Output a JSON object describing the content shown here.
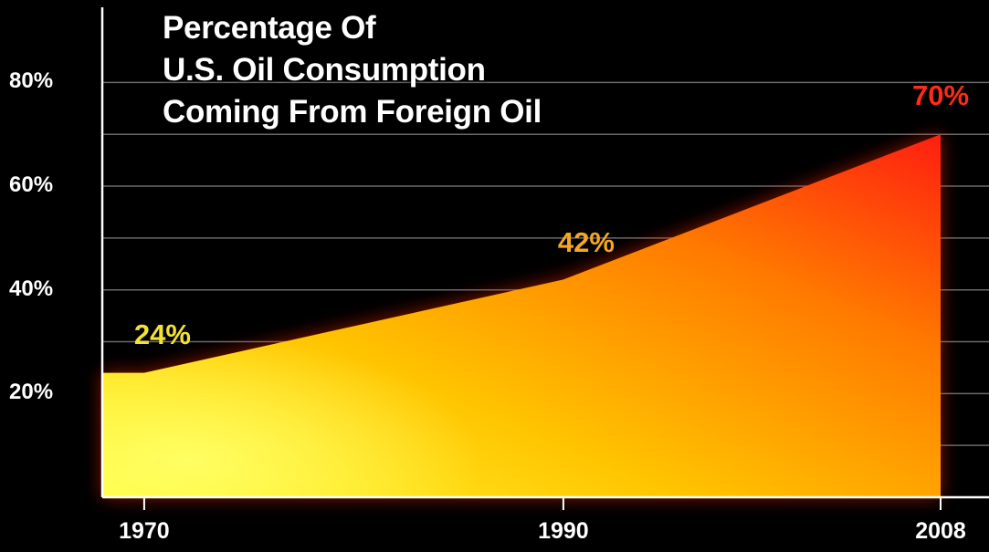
{
  "chart_data": {
    "type": "area",
    "title_lines": [
      "Percentage Of",
      "U.S. Oil Consumption",
      "Coming From Foreign Oil"
    ],
    "x": [
      1968,
      1970,
      1980,
      1990,
      2008
    ],
    "y": [
      24,
      24,
      33,
      42,
      70
    ],
    "xlim": [
      1968,
      2008
    ],
    "ylim": [
      0,
      85
    ],
    "x_ticks": [
      {
        "value": 1970,
        "label": "1970"
      },
      {
        "value": 1990,
        "label": "1990"
      },
      {
        "value": 2008,
        "label": "2008"
      }
    ],
    "y_ticks": [
      {
        "value": 20,
        "label": "20%"
      },
      {
        "value": 40,
        "label": "40%"
      },
      {
        "value": 60,
        "label": "60%"
      },
      {
        "value": 80,
        "label": "80%"
      }
    ],
    "data_labels": [
      {
        "x": 1970,
        "y": 24,
        "text": "24%",
        "color": "#f4e233"
      },
      {
        "x": 1990,
        "y": 42,
        "text": "42%",
        "color": "#f5a623"
      },
      {
        "x": 2008,
        "y": 70,
        "text": "70%",
        "color": "#ff2a1a"
      }
    ],
    "grid": true,
    "colors": {
      "background": "#000000",
      "fill_start": "#ffff33",
      "fill_mid": "#ffb400",
      "fill_end": "#ff1e10",
      "grid": "#6a6a6a",
      "text": "#ffffff"
    }
  }
}
